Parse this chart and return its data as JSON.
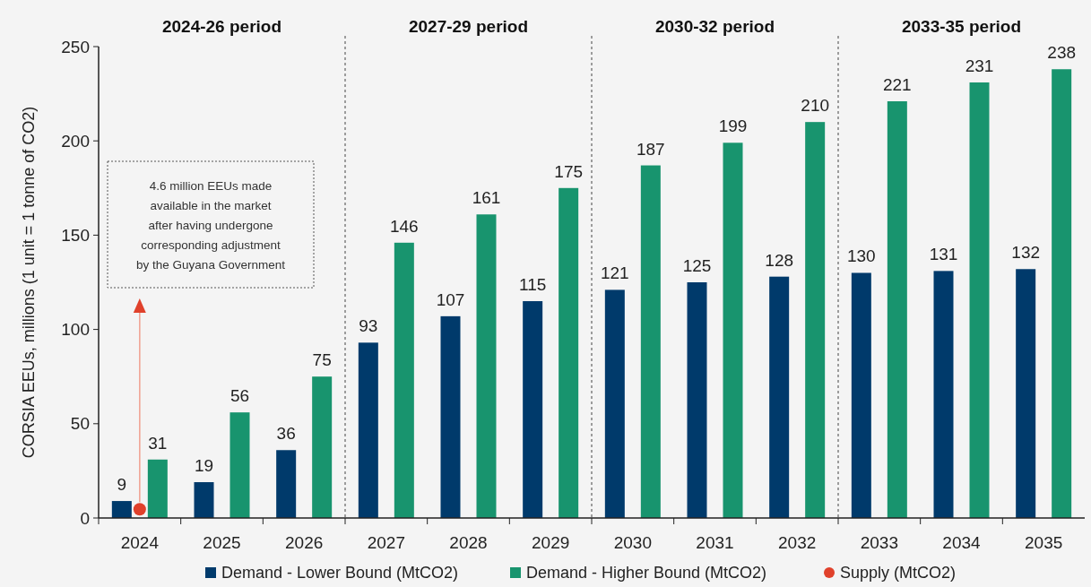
{
  "chart_data": {
    "type": "bar",
    "ylabel": "CORSIA EEUs, millions (1 unit = 1 tonne of CO2)",
    "categories": [
      "2024",
      "2025",
      "2026",
      "2027",
      "2028",
      "2029",
      "2030",
      "2031",
      "2032",
      "2033",
      "2034",
      "2035"
    ],
    "series": [
      {
        "name": "Demand - Lower Bound (MtCO2)",
        "color": "#003a6b",
        "values": [
          9,
          19,
          36,
          93,
          107,
          115,
          121,
          125,
          128,
          130,
          131,
          132
        ],
        "value_labels": [
          "9",
          "19",
          "36",
          "93",
          "107",
          "115",
          "121",
          "125",
          "128",
          "130",
          "131",
          "132"
        ]
      },
      {
        "name": "Demand - Higher Bound (MtCO2)",
        "color": "#18946e",
        "values": [
          31,
          56,
          75,
          146,
          161,
          175,
          187,
          199,
          210,
          221,
          231,
          238
        ],
        "value_labels": [
          "31",
          "56",
          "75",
          "146",
          "161",
          "175",
          "187",
          "199",
          "210",
          "221",
          "231",
          "238"
        ]
      },
      {
        "name": "Supply (MtCO2)",
        "type": "scatter",
        "color": "#e0412b",
        "marker": "circle",
        "values": [
          4.6,
          null,
          null,
          null,
          null,
          null,
          null,
          null,
          null,
          null,
          null,
          null
        ]
      }
    ],
    "ylim": [
      0,
      250
    ],
    "yticks": [
      0,
      50,
      100,
      150,
      200,
      250
    ],
    "grid": false,
    "legend": "bottom",
    "annotations": [
      "2024-26 period",
      "2027-29 period",
      "2030-32 period",
      "2033-35 period",
      "4.6 million EEUs made available in the market after having undergone corresponding adjustment by the Guyana Government"
    ]
  }
}
